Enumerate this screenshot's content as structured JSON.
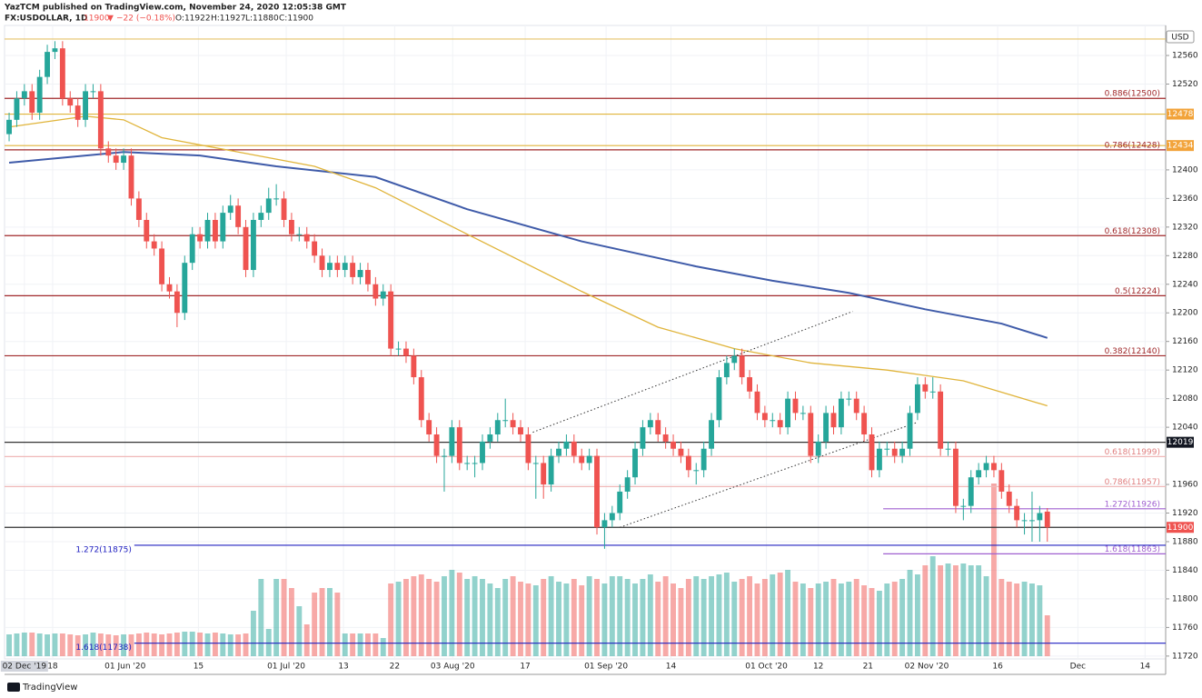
{
  "chart_data": {
    "type": "candlestick",
    "header": {
      "publisher": "YazTCM published on TradingView.com, November 24, 2020 12:05:38 GMT",
      "symbol": "FX:USDOLLAR, 1D",
      "last": "11900",
      "arrow": "▼",
      "change": "−22 (−0.18%)",
      "open": "O:11922",
      "high": "H:11927",
      "low": "L:11880",
      "close": "C:11900"
    },
    "currency": "USD",
    "footer": "TradingView",
    "xlim": [
      -0.6,
      151.5
    ],
    "ylim": [
      11716,
      12602
    ],
    "yticks": [
      11720,
      11760,
      11800,
      11840,
      11880,
      11920,
      11960,
      12040,
      12080,
      12120,
      12160,
      12200,
      12240,
      12280,
      12320,
      12360,
      12400,
      12520,
      12560
    ],
    "xticks": [
      {
        "value": 2,
        "label": "02 Dec '19"
      },
      {
        "value": 5.7,
        "label": "18"
      },
      {
        "value": 15.2,
        "label": "01 Jun '20"
      },
      {
        "value": 24.8,
        "label": "15"
      },
      {
        "value": 36.3,
        "label": "01 Jul '20"
      },
      {
        "value": 43.8,
        "label": "13"
      },
      {
        "value": 50.5,
        "label": "22"
      },
      {
        "value": 58.1,
        "label": "03 Aug '20"
      },
      {
        "value": 67.6,
        "label": "17"
      },
      {
        "value": 78.2,
        "label": "01 Sep '20"
      },
      {
        "value": 86.7,
        "label": "14"
      },
      {
        "value": 99.2,
        "label": "01 Oct '20"
      },
      {
        "value": 106,
        "label": "12"
      },
      {
        "value": 112.5,
        "label": "21"
      },
      {
        "value": 120.2,
        "label": "02 Nov '20"
      },
      {
        "value": 129.5,
        "label": "16"
      },
      {
        "value": 140,
        "label": "Dec"
      },
      {
        "value": 148.8,
        "label": "14"
      }
    ],
    "up_color": "#26a69a",
    "down_color": "#ef5350",
    "candles": [
      [
        12450,
        12480,
        12440,
        12470
      ],
      [
        12470,
        12510,
        12460,
        12500
      ],
      [
        12500,
        12520,
        12490,
        12510
      ],
      [
        12510,
        12520,
        12470,
        12480
      ],
      [
        12480,
        12540,
        12470,
        12530
      ],
      [
        12530,
        12575,
        12520,
        12565
      ],
      [
        12565,
        12580,
        12555,
        12570
      ],
      [
        12570,
        12580,
        12490,
        12500
      ],
      [
        12500,
        12510,
        12480,
        12490
      ],
      [
        12490,
        12500,
        12460,
        12470
      ],
      [
        12470,
        12520,
        12460,
        12510
      ],
      [
        12510,
        12520,
        12500,
        12510
      ],
      [
        12510,
        12520,
        12420,
        12430
      ],
      [
        12430,
        12440,
        12410,
        12420
      ],
      [
        12420,
        12430,
        12400,
        12410
      ],
      [
        12410,
        12430,
        12400,
        12420
      ],
      [
        12420,
        12430,
        12350,
        12360
      ],
      [
        12360,
        12370,
        12320,
        12330
      ],
      [
        12330,
        12340,
        12290,
        12300
      ],
      [
        12300,
        12310,
        12280,
        12290
      ],
      [
        12290,
        12300,
        12230,
        12240
      ],
      [
        12240,
        12250,
        12220,
        12230
      ],
      [
        12230,
        12240,
        12180,
        12200
      ],
      [
        12200,
        12280,
        12190,
        12270
      ],
      [
        12270,
        12320,
        12260,
        12310
      ],
      [
        12310,
        12320,
        12290,
        12300
      ],
      [
        12300,
        12340,
        12290,
        12330
      ],
      [
        12330,
        12340,
        12290,
        12300
      ],
      [
        12300,
        12350,
        12290,
        12340
      ],
      [
        12340,
        12365,
        12330,
        12350
      ],
      [
        12350,
        12360,
        12310,
        12320
      ],
      [
        12320,
        12330,
        12250,
        12260
      ],
      [
        12260,
        12340,
        12250,
        12330
      ],
      [
        12330,
        12350,
        12320,
        12340
      ],
      [
        12340,
        12375,
        12330,
        12360
      ],
      [
        12360,
        12380,
        12350,
        12360
      ],
      [
        12360,
        12370,
        12320,
        12330
      ],
      [
        12330,
        12340,
        12300,
        12310
      ],
      [
        12310,
        12320,
        12300,
        12310
      ],
      [
        12310,
        12320,
        12290,
        12300
      ],
      [
        12300,
        12310,
        12270,
        12280
      ],
      [
        12280,
        12290,
        12250,
        12260
      ],
      [
        12260,
        12280,
        12250,
        12270
      ],
      [
        12270,
        12280,
        12250,
        12260
      ],
      [
        12260,
        12280,
        12250,
        12270
      ],
      [
        12270,
        12280,
        12240,
        12250
      ],
      [
        12250,
        12270,
        12240,
        12260
      ],
      [
        12260,
        12270,
        12230,
        12240
      ],
      [
        12240,
        12250,
        12210,
        12220
      ],
      [
        12220,
        12240,
        12210,
        12230
      ],
      [
        12230,
        12240,
        12140,
        12150
      ],
      [
        12150,
        12160,
        12140,
        12150
      ],
      [
        12150,
        12160,
        12130,
        12140
      ],
      [
        12140,
        12150,
        12100,
        12110
      ],
      [
        12110,
        12120,
        12040,
        12050
      ],
      [
        12050,
        12060,
        12020,
        12030
      ],
      [
        12030,
        12040,
        11990,
        12000
      ],
      [
        12000,
        12010,
        11950,
        12000
      ],
      [
        12000,
        12050,
        11990,
        12040
      ],
      [
        12040,
        12050,
        11980,
        11990
      ],
      [
        11990,
        12000,
        11980,
        11990
      ],
      [
        11990,
        12000,
        11970,
        11990
      ],
      [
        11990,
        12030,
        11980,
        12020
      ],
      [
        12020,
        12040,
        12010,
        12030
      ],
      [
        12030,
        12060,
        12020,
        12050
      ],
      [
        12050,
        12080,
        12040,
        12050
      ],
      [
        12050,
        12060,
        12030,
        12040
      ],
      [
        12040,
        12050,
        12020,
        12030
      ],
      [
        12030,
        12040,
        11980,
        11990
      ],
      [
        11990,
        12000,
        11940,
        11990
      ],
      [
        11990,
        12000,
        11940,
        11960
      ],
      [
        11960,
        12010,
        11950,
        12000
      ],
      [
        12000,
        12020,
        11990,
        12010
      ],
      [
        12010,
        12030,
        12000,
        12020
      ],
      [
        12020,
        12030,
        11990,
        12000
      ],
      [
        12000,
        12010,
        11980,
        11990
      ],
      [
        11990,
        12010,
        11980,
        12000
      ],
      [
        12000,
        12010,
        11890,
        11900
      ],
      [
        11900,
        11920,
        11870,
        11910
      ],
      [
        11910,
        11930,
        11900,
        11920
      ],
      [
        11920,
        11960,
        11910,
        11950
      ],
      [
        11950,
        11980,
        11940,
        11970
      ],
      [
        11970,
        12020,
        11960,
        12010
      ],
      [
        12010,
        12050,
        12000,
        12040
      ],
      [
        12040,
        12060,
        12030,
        12050
      ],
      [
        12050,
        12060,
        12020,
        12030
      ],
      [
        12030,
        12040,
        12010,
        12020
      ],
      [
        12020,
        12030,
        12000,
        12010
      ],
      [
        12010,
        12020,
        11990,
        12000
      ],
      [
        12000,
        12010,
        11970,
        11980
      ],
      [
        11980,
        11990,
        11960,
        11980
      ],
      [
        11980,
        12020,
        11970,
        12010
      ],
      [
        12010,
        12060,
        12000,
        12050
      ],
      [
        12050,
        12120,
        12040,
        12110
      ],
      [
        12110,
        12140,
        12100,
        12130
      ],
      [
        12130,
        12150,
        12120,
        12140
      ],
      [
        12140,
        12150,
        12100,
        12110
      ],
      [
        12110,
        12120,
        12080,
        12090
      ],
      [
        12090,
        12100,
        12050,
        12060
      ],
      [
        12060,
        12070,
        12040,
        12050
      ],
      [
        12050,
        12060,
        12040,
        12050
      ],
      [
        12050,
        12060,
        12030,
        12040
      ],
      [
        12040,
        12090,
        12030,
        12080
      ],
      [
        12080,
        12090,
        12050,
        12060
      ],
      [
        12060,
        12070,
        12050,
        12060
      ],
      [
        12060,
        12070,
        11990,
        12000
      ],
      [
        12000,
        12030,
        11990,
        12020
      ],
      [
        12020,
        12070,
        12010,
        12060
      ],
      [
        12060,
        12070,
        12030,
        12040
      ],
      [
        12040,
        12090,
        12030,
        12080
      ],
      [
        12080,
        12090,
        12070,
        12080
      ],
      [
        12080,
        12090,
        12050,
        12060
      ],
      [
        12060,
        12070,
        12020,
        12030
      ],
      [
        12030,
        12040,
        11970,
        11980
      ],
      [
        11980,
        12020,
        11970,
        12010
      ],
      [
        12010,
        12020,
        12000,
        12010
      ],
      [
        12010,
        12020,
        11990,
        12000
      ],
      [
        12000,
        12020,
        11990,
        12010
      ],
      [
        12010,
        12070,
        12000,
        12060
      ],
      [
        12060,
        12110,
        12050,
        12100
      ],
      [
        12100,
        12110,
        12080,
        12090
      ],
      [
        12090,
        12110,
        12080,
        12090
      ],
      [
        12090,
        12100,
        12000,
        12010
      ],
      [
        12010,
        12020,
        12000,
        12010
      ],
      [
        12010,
        12020,
        11920,
        11930
      ],
      [
        11930,
        11940,
        11910,
        11930
      ],
      [
        11930,
        11980,
        11920,
        11970
      ],
      [
        11970,
        11990,
        11960,
        11980
      ],
      [
        11980,
        12000,
        11970,
        11990
      ],
      [
        11990,
        12000,
        11970,
        11980
      ],
      [
        11980,
        11990,
        11940,
        11950
      ],
      [
        11950,
        11960,
        11920,
        11930
      ],
      [
        11930,
        11940,
        11900,
        11910
      ],
      [
        11910,
        11920,
        11890,
        11910
      ],
      [
        11910,
        11950,
        11880,
        11910
      ],
      [
        11910,
        11930,
        11880,
        11920
      ],
      [
        11922,
        11927,
        11880,
        11900
      ]
    ],
    "volume": [
      24,
      25,
      26,
      26,
      25,
      24,
      25,
      25,
      24,
      23,
      24,
      26,
      25,
      24,
      23,
      24,
      24,
      25,
      26,
      25,
      24,
      25,
      26,
      27,
      27,
      26,
      25,
      26,
      25,
      24,
      24,
      25,
      50,
      85,
      30,
      85,
      85,
      75,
      55,
      35,
      70,
      75,
      75,
      70,
      25,
      25,
      25,
      25,
      25,
      20,
      80,
      82,
      85,
      88,
      90,
      85,
      82,
      88,
      95,
      92,
      85,
      88,
      85,
      80,
      75,
      85,
      88,
      82,
      80,
      78,
      85,
      88,
      82,
      80,
      85,
      78,
      88,
      85,
      80,
      88,
      88,
      85,
      80,
      85,
      90,
      82,
      88,
      80,
      75,
      85,
      88,
      85,
      88,
      90,
      92,
      82,
      85,
      88,
      80,
      85,
      90,
      92,
      95,
      82,
      80,
      75,
      80,
      82,
      85,
      80,
      82,
      85,
      78,
      75,
      72,
      80,
      82,
      85,
      95,
      90,
      100,
      110,
      100,
      102,
      100,
      102,
      100,
      100,
      88,
      190,
      85,
      82,
      80,
      82,
      80,
      78,
      45
    ],
    "volume_lim": [
      0,
      697
    ],
    "moving_averages": [
      {
        "color": "#3f5ba9",
        "x": [
          0,
          15,
          25,
          35,
          48,
          60,
          75,
          90,
          100,
          110,
          120,
          130,
          136
        ],
        "values": [
          12410,
          12425,
          12420,
          12405,
          12390,
          12345,
          12300,
          12265,
          12245,
          12228,
          12205,
          12185,
          12165
        ]
      },
      {
        "color": "#e0b43a",
        "x": [
          0,
          10,
          15,
          20,
          30,
          40,
          48,
          60,
          75,
          85,
          95,
          105,
          115,
          125,
          136
        ],
        "values": [
          12460,
          12475,
          12470,
          12445,
          12425,
          12405,
          12375,
          12310,
          12230,
          12180,
          12150,
          12130,
          12120,
          12105,
          12070
        ]
      }
    ],
    "trendlines": [
      {
        "x": [
          80,
          119
        ],
        "values": [
          11900,
          12047
        ]
      },
      {
        "x": [
          68.6,
          110.5
        ],
        "values": [
          12033,
          12202
        ]
      }
    ],
    "levels": [
      {
        "value": 12583,
        "color": "#e6c36a"
      },
      {
        "value": 12500,
        "color": "#a0282a",
        "label": "0.886(12500)"
      },
      {
        "value": 12478,
        "color": "#e0b43a"
      },
      {
        "value": 12434,
        "color": "#e0b43a"
      },
      {
        "value": 12428,
        "color": "#a0282a",
        "label": "0.786(12428)"
      },
      {
        "value": 12308,
        "color": "#a0282a",
        "label": "0.618(12308)"
      },
      {
        "value": 12224,
        "color": "#a0282a",
        "label": "0.5(12224)"
      },
      {
        "value": 12140,
        "color": "#a0282a",
        "label": "0.382(12140)"
      },
      {
        "value": 12019,
        "color": "#333333"
      },
      {
        "value": 11999,
        "color": "#f0b8b8",
        "label": "0.618(11999)"
      },
      {
        "value": 11957,
        "color": "#f0b8b8",
        "label": "0.786(11957)"
      },
      {
        "value": 11926,
        "color": "#a060d0",
        "from": 114.5,
        "label": "1.272(11926)"
      },
      {
        "value": 11900,
        "color": "#333333"
      },
      {
        "value": 11875,
        "color": "#2020c0",
        "from": 16.4,
        "label": "1.272(11875)",
        "label_left": true
      },
      {
        "value": 11863,
        "color": "#a060d0",
        "from": 114.5,
        "label": "1.618(11863)"
      },
      {
        "value": 11738,
        "color": "#2020c0",
        "from": 16.4,
        "label": "1.618(11738)",
        "label_left": true
      }
    ],
    "price_tags": [
      {
        "value": 12478,
        "color": "#f2a33a"
      },
      {
        "value": 12434,
        "color": "#f2a33a"
      },
      {
        "value": 12019,
        "color": "#131722"
      },
      {
        "value": 11900,
        "color": "#ef5350"
      }
    ]
  }
}
